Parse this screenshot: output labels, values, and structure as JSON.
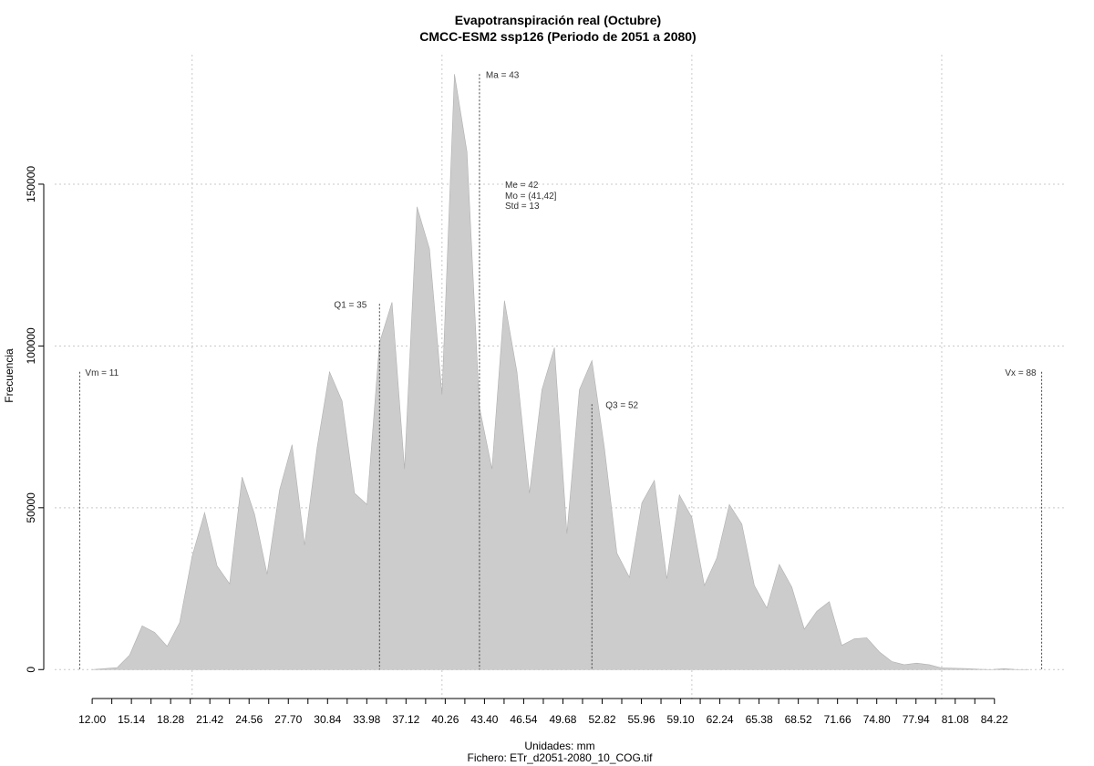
{
  "chart_data": {
    "type": "area",
    "title": "Evapotranspiración real (Octubre)",
    "subtitle": "CMCC-ESM2 ssp126 (Periodo de 2051 a 2080)",
    "xlabel": "Unidades: mm",
    "file_label": "Fichero: ETr_d2051-2080_10_COG.tif",
    "ylabel": "Frecuencia",
    "xlim": [
      9.0,
      90.0
    ],
    "ylim": [
      -5000,
      190000
    ],
    "grid": true,
    "fill_color": "#cccccc",
    "x_tick_labels": [
      "12.00",
      "15.14",
      "18.28",
      "21.42",
      "24.56",
      "27.70",
      "30.84",
      "33.98",
      "37.12",
      "40.26",
      "43.40",
      "46.54",
      "49.68",
      "52.82",
      "55.96",
      "59.10",
      "62.24",
      "65.38",
      "68.52",
      "71.66",
      "74.80",
      "77.94",
      "81.08",
      "84.22"
    ],
    "y_ticks": [
      0,
      50000,
      100000,
      150000
    ],
    "x": [
      12.0,
      13.0,
      14.0,
      15.0,
      16.0,
      17.0,
      18.0,
      19.0,
      20.0,
      21.0,
      22.0,
      23.0,
      24.0,
      25.0,
      26.0,
      27.0,
      28.0,
      29.0,
      30.0,
      31.0,
      32.0,
      33.0,
      34.0,
      35.0,
      36.0,
      37.0,
      38.0,
      39.0,
      40.0,
      41.0,
      42.0,
      43.0,
      44.0,
      45.0,
      46.0,
      47.0,
      48.0,
      49.0,
      50.0,
      51.0,
      52.0,
      53.0,
      54.0,
      55.0,
      56.0,
      57.0,
      58.0,
      59.0,
      60.0,
      61.0,
      62.0,
      63.0,
      64.0,
      65.0,
      66.0,
      67.0,
      68.0,
      69.0,
      70.0,
      71.0,
      72.0,
      73.0,
      74.0,
      75.0,
      76.0,
      77.0,
      78.0,
      79.0,
      80.0,
      81.0,
      82.0,
      83.0,
      84.0,
      85.0,
      86.0,
      87.0
    ],
    "values": [
      0,
      300,
      600,
      4500,
      13500,
      11500,
      7200,
      14500,
      35000,
      48500,
      32000,
      26500,
      59500,
      48000,
      29500,
      55500,
      69500,
      38500,
      68500,
      92000,
      83000,
      54500,
      51000,
      101000,
      113500,
      62000,
      143000,
      130000,
      85000,
      184000,
      160000,
      81000,
      62000,
      114000,
      92000,
      54500,
      86500,
      99500,
      42000,
      86500,
      95500,
      68500,
      36000,
      28500,
      51500,
      58500,
      28000,
      54000,
      47000,
      26000,
      34500,
      51000,
      45000,
      26000,
      19000,
      32500,
      25500,
      12500,
      18000,
      21000,
      7500,
      9500,
      9800,
      5500,
      2500,
      1500,
      2000,
      1500,
      500,
      400,
      300,
      100,
      0,
      300,
      0,
      0
    ],
    "stats": {
      "vm": "Vm = 11",
      "vx": "Vx = 88",
      "q1": "Q1 = 35",
      "q3": "Q3 = 52",
      "ma": "Ma = 43",
      "me": "Me = 42",
      "mo": "Mo = (41,42]",
      "std": "Std = 13"
    },
    "vlines": {
      "vm": {
        "x": 11.0,
        "top": 92000
      },
      "q1": {
        "x": 35.0,
        "top": 113000
      },
      "ma": {
        "x": 43.0,
        "top": 184000
      },
      "q3": {
        "x": 52.0,
        "top": 82000
      },
      "vx": {
        "x": 88.0,
        "top": 92000
      }
    }
  }
}
